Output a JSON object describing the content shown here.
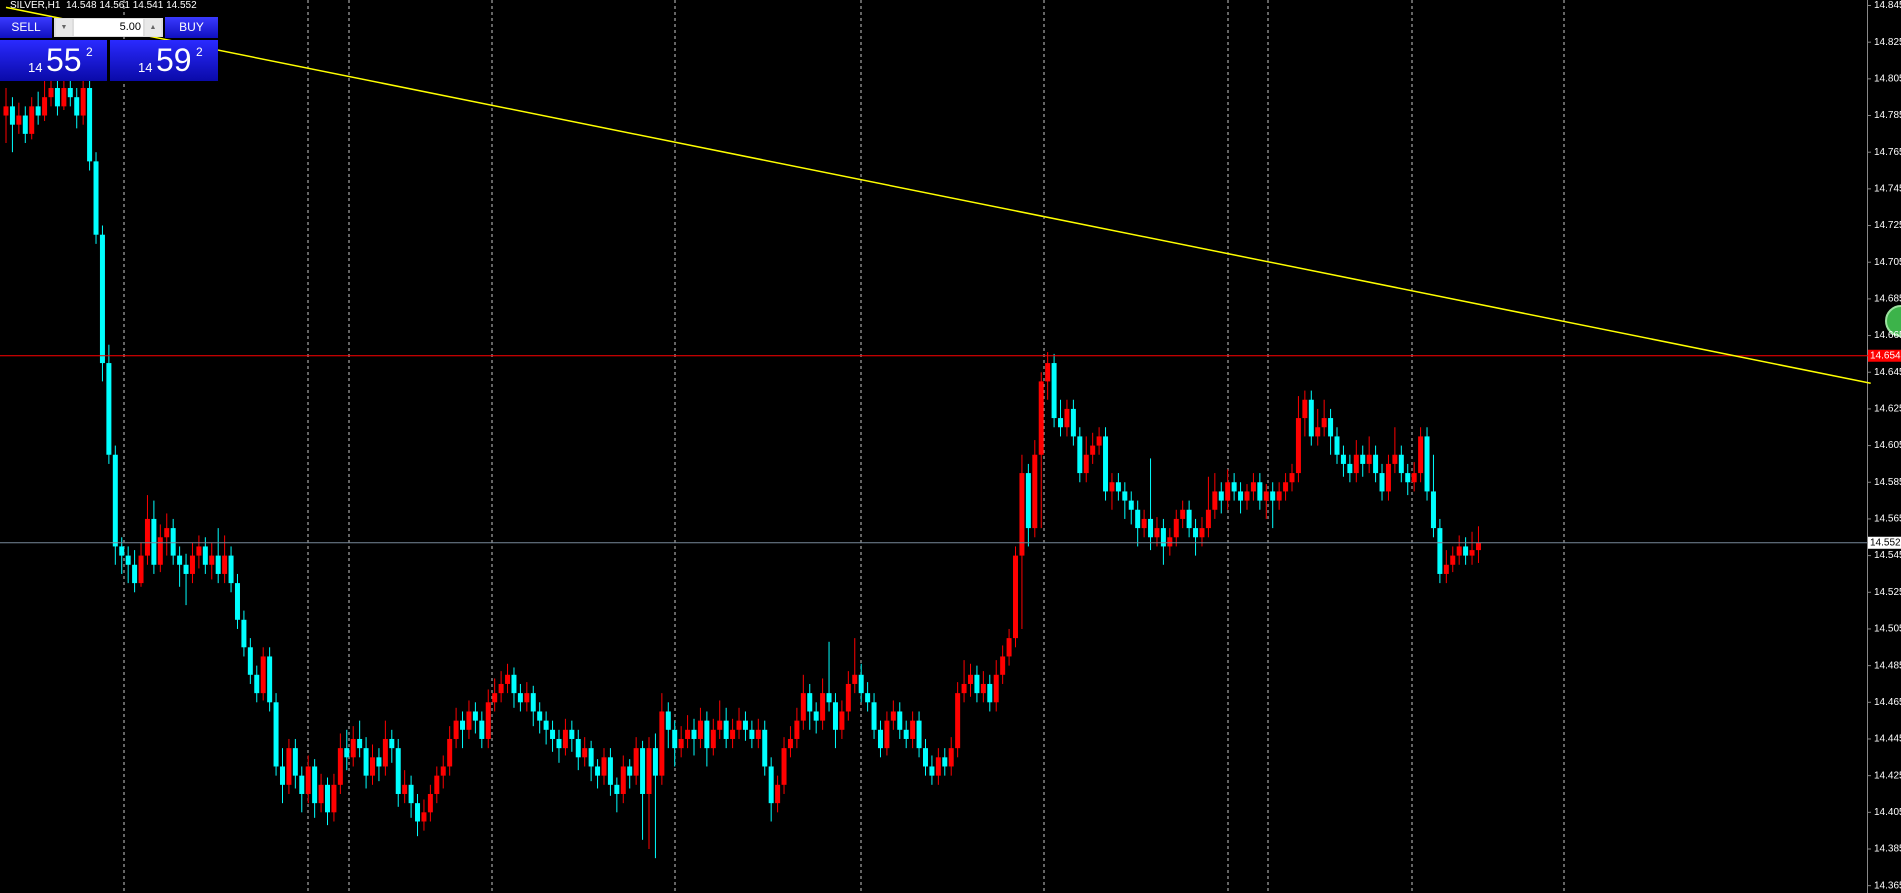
{
  "chart_data": {
    "type": "candlestick",
    "symbol": "SILVER,H1",
    "bull_color": "#ff0000",
    "bear_color": "#00ffff",
    "hline": 14.654,
    "hline_color": "#ff0000",
    "trendline": {
      "x": [
        0,
        290
      ],
      "y": [
        14.844,
        14.639
      ],
      "color": "#ffff00"
    },
    "ylim": [
      14.361,
      14.848
    ],
    "yticks": [
      14.845,
      14.825,
      14.805,
      14.785,
      14.765,
      14.745,
      14.725,
      14.705,
      14.685,
      14.665,
      14.645,
      14.625,
      14.605,
      14.585,
      14.565,
      14.545,
      14.525,
      14.505,
      14.485,
      14.465,
      14.445,
      14.425,
      14.405,
      14.385,
      14.365
    ],
    "candles": [
      [
        14.785,
        14.8,
        14.77,
        14.79
      ],
      [
        14.79,
        14.795,
        14.765,
        14.78
      ],
      [
        14.78,
        14.792,
        14.775,
        14.785
      ],
      [
        14.785,
        14.79,
        14.77,
        14.775
      ],
      [
        14.775,
        14.795,
        14.772,
        14.79
      ],
      [
        14.79,
        14.798,
        14.78,
        14.785
      ],
      [
        14.785,
        14.805,
        14.782,
        14.795
      ],
      [
        14.795,
        14.81,
        14.79,
        14.8
      ],
      [
        14.8,
        14.808,
        14.785,
        14.79
      ],
      [
        14.79,
        14.81,
        14.788,
        14.8
      ],
      [
        14.8,
        14.806,
        14.79,
        14.795
      ],
      [
        14.795,
        14.8,
        14.778,
        14.785
      ],
      [
        14.785,
        14.812,
        14.78,
        14.8
      ],
      [
        14.8,
        14.805,
        14.755,
        14.76
      ],
      [
        14.76,
        14.765,
        14.715,
        14.72
      ],
      [
        14.72,
        14.725,
        14.64,
        14.65
      ],
      [
        14.65,
        14.66,
        14.595,
        14.6
      ],
      [
        14.6,
        14.605,
        14.54,
        14.55
      ],
      [
        14.55,
        14.555,
        14.535,
        14.545
      ],
      [
        14.545,
        14.55,
        14.53,
        14.54
      ],
      [
        14.54,
        14.548,
        14.525,
        14.53
      ],
      [
        14.53,
        14.552,
        14.528,
        14.545
      ],
      [
        14.545,
        14.578,
        14.54,
        14.565
      ],
      [
        14.565,
        14.575,
        14.535,
        14.54
      ],
      [
        14.54,
        14.562,
        14.536,
        14.555
      ],
      [
        14.555,
        14.568,
        14.545,
        14.56
      ],
      [
        14.56,
        14.565,
        14.54,
        14.545
      ],
      [
        14.545,
        14.55,
        14.528,
        14.54
      ],
      [
        14.54,
        14.546,
        14.518,
        14.535
      ],
      [
        14.535,
        14.552,
        14.53,
        14.545
      ],
      [
        14.545,
        14.556,
        14.538,
        14.55
      ],
      [
        14.55,
        14.555,
        14.535,
        14.54
      ],
      [
        14.54,
        14.552,
        14.532,
        14.545
      ],
      [
        14.545,
        14.56,
        14.53,
        14.535
      ],
      [
        14.535,
        14.556,
        14.53,
        14.545
      ],
      [
        14.545,
        14.55,
        14.525,
        14.53
      ],
      [
        14.53,
        14.535,
        14.505,
        14.51
      ],
      [
        14.51,
        14.515,
        14.49,
        14.495
      ],
      [
        14.495,
        14.5,
        14.475,
        14.48
      ],
      [
        14.48,
        14.485,
        14.465,
        14.47
      ],
      [
        14.47,
        14.495,
        14.466,
        14.49
      ],
      [
        14.49,
        14.495,
        14.46,
        14.465
      ],
      [
        14.465,
        14.47,
        14.425,
        14.43
      ],
      [
        14.43,
        14.44,
        14.41,
        14.42
      ],
      [
        14.42,
        14.445,
        14.415,
        14.44
      ],
      [
        14.44,
        14.445,
        14.418,
        14.425
      ],
      [
        14.425,
        14.43,
        14.405,
        14.415
      ],
      [
        14.415,
        14.436,
        14.41,
        14.43
      ],
      [
        14.43,
        14.434,
        14.402,
        14.41
      ],
      [
        14.41,
        14.426,
        14.405,
        14.42
      ],
      [
        14.42,
        14.424,
        14.398,
        14.405
      ],
      [
        14.405,
        14.426,
        14.4,
        14.42
      ],
      [
        14.42,
        14.448,
        14.415,
        14.44
      ],
      [
        14.44,
        14.45,
        14.428,
        14.435
      ],
      [
        14.435,
        14.452,
        14.43,
        14.445
      ],
      [
        14.445,
        14.455,
        14.435,
        14.44
      ],
      [
        14.44,
        14.446,
        14.418,
        14.425
      ],
      [
        14.425,
        14.442,
        14.42,
        14.435
      ],
      [
        14.435,
        14.44,
        14.422,
        14.43
      ],
      [
        14.43,
        14.455,
        14.425,
        14.445
      ],
      [
        14.445,
        14.45,
        14.432,
        14.44
      ],
      [
        14.44,
        14.445,
        14.408,
        14.415
      ],
      [
        14.415,
        14.428,
        14.41,
        14.42
      ],
      [
        14.42,
        14.425,
        14.402,
        14.41
      ],
      [
        14.41,
        14.415,
        14.392,
        14.4
      ],
      [
        14.4,
        14.412,
        14.395,
        14.405
      ],
      [
        14.405,
        14.42,
        14.4,
        14.415
      ],
      [
        14.415,
        14.43,
        14.41,
        14.425
      ],
      [
        14.425,
        14.436,
        14.418,
        14.43
      ],
      [
        14.43,
        14.452,
        14.425,
        14.445
      ],
      [
        14.445,
        14.462,
        14.44,
        14.455
      ],
      [
        14.455,
        14.46,
        14.44,
        14.45
      ],
      [
        14.45,
        14.466,
        14.445,
        14.46
      ],
      [
        14.46,
        14.465,
        14.448,
        14.455
      ],
      [
        14.455,
        14.46,
        14.44,
        14.445
      ],
      [
        14.445,
        14.472,
        14.44,
        14.465
      ],
      [
        14.465,
        14.478,
        14.46,
        14.47
      ],
      [
        14.47,
        14.482,
        14.465,
        14.475
      ],
      [
        14.475,
        14.486,
        14.47,
        14.48
      ],
      [
        14.48,
        14.484,
        14.462,
        14.47
      ],
      [
        14.47,
        14.475,
        14.46,
        14.465
      ],
      [
        14.465,
        14.476,
        14.46,
        14.47
      ],
      [
        14.47,
        14.474,
        14.452,
        14.46
      ],
      [
        14.46,
        14.465,
        14.448,
        14.455
      ],
      [
        14.455,
        14.46,
        14.442,
        14.45
      ],
      [
        14.45,
        14.455,
        14.438,
        14.445
      ],
      [
        14.445,
        14.45,
        14.432,
        14.44
      ],
      [
        14.44,
        14.456,
        14.436,
        14.45
      ],
      [
        14.45,
        14.455,
        14.438,
        14.445
      ],
      [
        14.445,
        14.45,
        14.428,
        14.435
      ],
      [
        14.435,
        14.446,
        14.43,
        14.44
      ],
      [
        14.44,
        14.444,
        14.422,
        14.43
      ],
      [
        14.43,
        14.434,
        14.418,
        14.425
      ],
      [
        14.425,
        14.44,
        14.42,
        14.435
      ],
      [
        14.435,
        14.44,
        14.414,
        14.42
      ],
      [
        14.42,
        14.424,
        14.405,
        14.415
      ],
      [
        14.415,
        14.436,
        14.41,
        14.43
      ],
      [
        14.43,
        14.434,
        14.418,
        14.425
      ],
      [
        14.425,
        14.446,
        14.42,
        14.44
      ],
      [
        14.44,
        14.444,
        14.39,
        14.415
      ],
      [
        14.415,
        14.446,
        14.385,
        14.44
      ],
      [
        14.44,
        14.448,
        14.38,
        14.425
      ],
      [
        14.425,
        14.47,
        14.42,
        14.46
      ],
      [
        14.46,
        14.465,
        14.44,
        14.45
      ],
      [
        14.45,
        14.455,
        14.43,
        14.44
      ],
      [
        14.44,
        14.452,
        14.435,
        14.445
      ],
      [
        14.445,
        14.458,
        14.44,
        14.45
      ],
      [
        14.45,
        14.456,
        14.436,
        14.445
      ],
      [
        14.445,
        14.462,
        14.44,
        14.455
      ],
      [
        14.455,
        14.46,
        14.43,
        14.44
      ],
      [
        14.44,
        14.456,
        14.436,
        14.45
      ],
      [
        14.45,
        14.466,
        14.445,
        14.455
      ],
      [
        14.455,
        14.462,
        14.44,
        14.445
      ],
      [
        14.445,
        14.456,
        14.44,
        14.45
      ],
      [
        14.45,
        14.462,
        14.445,
        14.455
      ],
      [
        14.455,
        14.46,
        14.444,
        14.45
      ],
      [
        14.45,
        14.455,
        14.44,
        14.445
      ],
      [
        14.445,
        14.456,
        14.44,
        14.45
      ],
      [
        14.45,
        14.455,
        14.425,
        14.43
      ],
      [
        14.43,
        14.435,
        14.4,
        14.41
      ],
      [
        14.41,
        14.425,
        14.405,
        14.42
      ],
      [
        14.42,
        14.446,
        14.415,
        14.44
      ],
      [
        14.44,
        14.452,
        14.435,
        14.445
      ],
      [
        14.445,
        14.462,
        14.44,
        14.455
      ],
      [
        14.455,
        14.48,
        14.45,
        14.47
      ],
      [
        14.47,
        14.475,
        14.45,
        14.46
      ],
      [
        14.46,
        14.465,
        14.448,
        14.455
      ],
      [
        14.455,
        14.478,
        14.45,
        14.47
      ],
      [
        14.47,
        14.498,
        14.46,
        14.465
      ],
      [
        14.465,
        14.47,
        14.44,
        14.45
      ],
      [
        14.45,
        14.466,
        14.445,
        14.46
      ],
      [
        14.46,
        14.482,
        14.455,
        14.475
      ],
      [
        14.475,
        14.5,
        14.47,
        14.48
      ],
      [
        14.48,
        14.486,
        14.465,
        14.47
      ],
      [
        14.47,
        14.476,
        14.46,
        14.465
      ],
      [
        14.465,
        14.47,
        14.445,
        14.45
      ],
      [
        14.45,
        14.455,
        14.435,
        14.44
      ],
      [
        14.44,
        14.46,
        14.436,
        14.455
      ],
      [
        14.455,
        14.466,
        14.45,
        14.46
      ],
      [
        14.46,
        14.465,
        14.445,
        14.45
      ],
      [
        14.45,
        14.455,
        14.44,
        14.445
      ],
      [
        14.445,
        14.46,
        14.44,
        14.455
      ],
      [
        14.455,
        14.46,
        14.435,
        14.44
      ],
      [
        14.44,
        14.445,
        14.425,
        14.43
      ],
      [
        14.43,
        14.436,
        14.42,
        14.425
      ],
      [
        14.425,
        14.44,
        14.42,
        14.435
      ],
      [
        14.435,
        14.44,
        14.425,
        14.43
      ],
      [
        14.43,
        14.446,
        14.425,
        14.44
      ],
      [
        14.44,
        14.476,
        14.435,
        14.47
      ],
      [
        14.47,
        14.488,
        14.465,
        14.475
      ],
      [
        14.475,
        14.486,
        14.468,
        14.48
      ],
      [
        14.48,
        14.485,
        14.465,
        14.47
      ],
      [
        14.47,
        14.482,
        14.465,
        14.475
      ],
      [
        14.475,
        14.48,
        14.46,
        14.465
      ],
      [
        14.465,
        14.488,
        14.46,
        14.48
      ],
      [
        14.48,
        14.496,
        14.475,
        14.49
      ],
      [
        14.49,
        14.505,
        14.485,
        14.5
      ],
      [
        14.5,
        14.55,
        14.495,
        14.545
      ],
      [
        14.545,
        14.6,
        14.505,
        14.59
      ],
      [
        14.59,
        14.595,
        14.55,
        14.56
      ],
      [
        14.56,
        14.608,
        14.555,
        14.6
      ],
      [
        14.6,
        14.645,
        14.56,
        14.64
      ],
      [
        14.64,
        14.656,
        14.63,
        14.65
      ],
      [
        14.65,
        14.655,
        14.615,
        14.62
      ],
      [
        14.62,
        14.63,
        14.61,
        14.615
      ],
      [
        14.615,
        14.63,
        14.61,
        14.625
      ],
      [
        14.625,
        14.63,
        14.605,
        14.61
      ],
      [
        14.61,
        14.615,
        14.585,
        14.59
      ],
      [
        14.59,
        14.61,
        14.585,
        14.6
      ],
      [
        14.6,
        14.612,
        14.595,
        14.605
      ],
      [
        14.605,
        14.615,
        14.6,
        14.61
      ],
      [
        14.61,
        14.615,
        14.575,
        14.58
      ],
      [
        14.58,
        14.59,
        14.57,
        14.585
      ],
      [
        14.585,
        14.59,
        14.575,
        14.58
      ],
      [
        14.58,
        14.585,
        14.565,
        14.575
      ],
      [
        14.575,
        14.58,
        14.562,
        14.57
      ],
      [
        14.57,
        14.575,
        14.55,
        14.56
      ],
      [
        14.56,
        14.57,
        14.555,
        14.565
      ],
      [
        14.565,
        14.598,
        14.548,
        14.555
      ],
      [
        14.555,
        14.566,
        14.55,
        14.56
      ],
      [
        14.56,
        14.565,
        14.54,
        14.55
      ],
      [
        14.55,
        14.56,
        14.545,
        14.555
      ],
      [
        14.555,
        14.57,
        14.55,
        14.565
      ],
      [
        14.565,
        14.575,
        14.56,
        14.57
      ],
      [
        14.57,
        14.575,
        14.555,
        14.56
      ],
      [
        14.56,
        14.565,
        14.545,
        14.555
      ],
      [
        14.555,
        14.566,
        14.55,
        14.56
      ],
      [
        14.56,
        14.588,
        14.555,
        14.57
      ],
      [
        14.57,
        14.59,
        14.565,
        14.58
      ],
      [
        14.58,
        14.585,
        14.568,
        14.575
      ],
      [
        14.575,
        14.592,
        14.57,
        14.585
      ],
      [
        14.585,
        14.59,
        14.575,
        14.58
      ],
      [
        14.58,
        14.585,
        14.568,
        14.575
      ],
      [
        14.575,
        14.584,
        14.57,
        14.58
      ],
      [
        14.58,
        14.59,
        14.575,
        14.585
      ],
      [
        14.585,
        14.59,
        14.57,
        14.575
      ],
      [
        14.575,
        14.584,
        14.565,
        14.58
      ],
      [
        14.58,
        14.585,
        14.56,
        14.575
      ],
      [
        14.575,
        14.585,
        14.57,
        14.58
      ],
      [
        14.58,
        14.59,
        14.575,
        14.585
      ],
      [
        14.585,
        14.595,
        14.58,
        14.59
      ],
      [
        14.59,
        14.632,
        14.585,
        14.62
      ],
      [
        14.62,
        14.635,
        14.61,
        14.63
      ],
      [
        14.63,
        14.635,
        14.605,
        14.61
      ],
      [
        14.61,
        14.625,
        14.605,
        14.615
      ],
      [
        14.615,
        14.63,
        14.61,
        14.62
      ],
      [
        14.62,
        14.625,
        14.6,
        14.61
      ],
      [
        14.61,
        14.615,
        14.595,
        14.6
      ],
      [
        14.6,
        14.605,
        14.588,
        14.595
      ],
      [
        14.595,
        14.6,
        14.585,
        14.59
      ],
      [
        14.59,
        14.608,
        14.585,
        14.6
      ],
      [
        14.6,
        14.605,
        14.588,
        14.595
      ],
      [
        14.595,
        14.61,
        14.59,
        14.6
      ],
      [
        14.6,
        14.605,
        14.585,
        14.59
      ],
      [
        14.59,
        14.595,
        14.575,
        14.58
      ],
      [
        14.58,
        14.6,
        14.575,
        14.595
      ],
      [
        14.595,
        14.615,
        14.59,
        14.6
      ],
      [
        14.6,
        14.605,
        14.585,
        14.59
      ],
      [
        14.59,
        14.595,
        14.578,
        14.585
      ],
      [
        14.585,
        14.596,
        14.58,
        14.59
      ],
      [
        14.59,
        14.615,
        14.585,
        14.61
      ],
      [
        14.61,
        14.615,
        14.575,
        14.58
      ],
      [
        14.58,
        14.6,
        14.555,
        14.56
      ],
      [
        14.56,
        14.565,
        14.53,
        14.535
      ],
      [
        14.535,
        14.548,
        14.53,
        14.54
      ],
      [
        14.54,
        14.55,
        14.536,
        14.545
      ],
      [
        14.545,
        14.556,
        14.54,
        14.55
      ],
      [
        14.55,
        14.555,
        14.54,
        14.545
      ],
      [
        14.545,
        14.558,
        14.54,
        14.548
      ],
      [
        14.548,
        14.561,
        14.541,
        14.552
      ]
    ]
  },
  "trade_panel": {
    "sell": "SELL",
    "buy": "BUY",
    "lot": "5.00",
    "sell_price": {
      "big": "14",
      "pips": "55",
      "frac": "2"
    },
    "buy_price": {
      "big": "14",
      "pips": "59",
      "frac": "2"
    }
  }
}
